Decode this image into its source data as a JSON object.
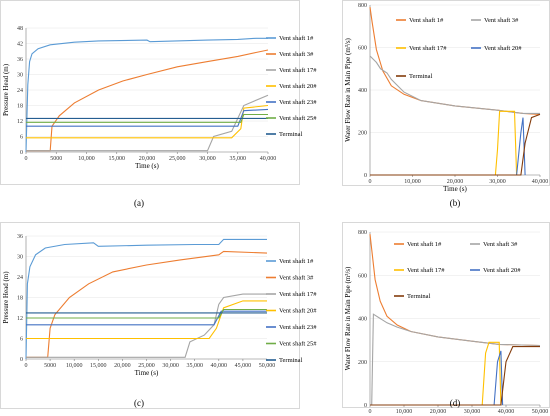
{
  "chart_data": [
    {
      "id": "a",
      "type": "line",
      "caption": "(a)",
      "xlabel": "Time (s)",
      "ylabel": "Pressure Head (m)",
      "xlim": [
        0,
        40000
      ],
      "ylim": [
        0,
        48
      ],
      "xticks": [
        0,
        5000,
        10000,
        15000,
        20000,
        25000,
        30000,
        35000,
        40000
      ],
      "xtick_labels": [
        "0",
        "5000",
        "10,000",
        "15,000",
        "20,000",
        "25,000",
        "30,000",
        "35,000",
        "40,000"
      ],
      "yticks": [
        0,
        6,
        12,
        18,
        24,
        30,
        36,
        42,
        48
      ],
      "grid": true,
      "legend_position": "right",
      "series": [
        {
          "name": "Vent shaft 1#",
          "color": "#5b9bd5",
          "points": [
            [
              0,
              0
            ],
            [
              300,
              26
            ],
            [
              600,
              35
            ],
            [
              1000,
              38
            ],
            [
              2000,
              40
            ],
            [
              4000,
              41.5
            ],
            [
              8000,
              42.5
            ],
            [
              12000,
              43
            ],
            [
              20000,
              43.3
            ],
            [
              20500,
              42.7
            ],
            [
              30000,
              43.3
            ],
            [
              35000,
              43.6
            ],
            [
              38000,
              44
            ],
            [
              40000,
              44
            ]
          ]
        },
        {
          "name": "Vent shaft 3#",
          "color": "#ed7d31",
          "points": [
            [
              0,
              0.5
            ],
            [
              4000,
              0.5
            ],
            [
              4300,
              10
            ],
            [
              5500,
              14
            ],
            [
              8000,
              19
            ],
            [
              12000,
              24
            ],
            [
              16000,
              27.5
            ],
            [
              20000,
              30
            ],
            [
              25000,
              33
            ],
            [
              30000,
              35
            ],
            [
              35000,
              37
            ],
            [
              38000,
              38.5
            ],
            [
              40000,
              39.5
            ]
          ]
        },
        {
          "name": "Vent shaft 17#",
          "color": "#a5a5a5",
          "points": [
            [
              0,
              0.5
            ],
            [
              30000,
              0.5
            ],
            [
              31000,
              6
            ],
            [
              34000,
              8
            ],
            [
              36000,
              18
            ],
            [
              40000,
              22
            ]
          ]
        },
        {
          "name": "Vent shaft 20#",
          "color": "#ffc000",
          "points": [
            [
              0,
              5.5
            ],
            [
              34000,
              5.5
            ],
            [
              35500,
              9
            ],
            [
              36000,
              17
            ],
            [
              40000,
              18
            ]
          ]
        },
        {
          "name": "Vent shaft 23#",
          "color": "#4472c4",
          "points": [
            [
              0,
              10
            ],
            [
              35000,
              10
            ],
            [
              36000,
              16
            ],
            [
              40000,
              16.5
            ]
          ]
        },
        {
          "name": "Vent shaft 25#",
          "color": "#70ad47",
          "points": [
            [
              0,
              11.5
            ],
            [
              35500,
              11.5
            ],
            [
              36000,
              14.5
            ],
            [
              40000,
              14.5
            ]
          ]
        },
        {
          "name": "Terminal",
          "color": "#255e91",
          "points": [
            [
              0,
              13
            ],
            [
              40000,
              13
            ]
          ]
        }
      ]
    },
    {
      "id": "b",
      "type": "line",
      "caption": "(b)",
      "xlabel": "Time (s)",
      "ylabel": "Water Flow Rate in Main Pipe (m³/s)",
      "xlim": [
        0,
        40000
      ],
      "ylim": [
        0,
        800
      ],
      "xticks": [
        0,
        10000,
        20000,
        30000,
        40000
      ],
      "xtick_labels": [
        "0",
        "10,000",
        "20,000",
        "30,000",
        "40,000"
      ],
      "yticks": [
        0,
        200,
        400,
        600,
        800
      ],
      "grid": true,
      "legend_position": "top",
      "series": [
        {
          "name": "Vent shaft 1#",
          "color": "#ed7d31",
          "points": [
            [
              0,
              790
            ],
            [
              500,
              720
            ],
            [
              1500,
              590
            ],
            [
              3000,
              490
            ],
            [
              5000,
              420
            ],
            [
              8000,
              380
            ],
            [
              12000,
              350
            ],
            [
              20000,
              325
            ],
            [
              30000,
              305
            ],
            [
              36000,
              290
            ],
            [
              40000,
              285
            ]
          ]
        },
        {
          "name": "Vent shaft 3#",
          "color": "#a5a5a5",
          "points": [
            [
              0,
              560
            ],
            [
              1500,
              530
            ],
            [
              2500,
              500
            ],
            [
              4000,
              480
            ],
            [
              5000,
              450
            ],
            [
              8000,
              390
            ],
            [
              12000,
              350
            ],
            [
              20000,
              325
            ],
            [
              30000,
              305
            ],
            [
              36000,
              290
            ],
            [
              40000,
              290
            ]
          ]
        },
        {
          "name": "Vent shaft 17#",
          "color": "#ffc000",
          "points": [
            [
              0,
              0
            ],
            [
              29500,
              0
            ],
            [
              30000,
              120
            ],
            [
              30500,
              300
            ],
            [
              34000,
              300
            ],
            [
              34500,
              0
            ]
          ]
        },
        {
          "name": "Vent shaft 20#",
          "color": "#4472c4",
          "points": [
            [
              0,
              0
            ],
            [
              34500,
              0
            ],
            [
              35500,
              200
            ],
            [
              36000,
              270
            ],
            [
              36500,
              0
            ]
          ]
        },
        {
          "name": "Terminal",
          "color": "#843c0c",
          "points": [
            [
              0,
              0
            ],
            [
              35500,
              0
            ],
            [
              36500,
              150
            ],
            [
              38000,
              270
            ],
            [
              40000,
              285
            ]
          ]
        }
      ]
    },
    {
      "id": "c",
      "type": "line",
      "caption": "(c)",
      "xlabel": "Time (s)",
      "ylabel": "Pressure Head (m)",
      "xlim": [
        0,
        50000
      ],
      "ylim": [
        0,
        36
      ],
      "xticks": [
        0,
        5000,
        10000,
        15000,
        20000,
        25000,
        30000,
        35000,
        40000,
        45000,
        50000
      ],
      "xtick_labels": [
        "0",
        "5000",
        "10,000",
        "15,000",
        "20,000",
        "25,000",
        "30,000",
        "35,000",
        "40,000",
        "45,000",
        "50,000"
      ],
      "yticks": [
        0,
        6,
        12,
        18,
        24,
        30,
        36
      ],
      "grid": true,
      "legend_position": "right",
      "series": [
        {
          "name": "Vent shaft 1#",
          "color": "#5b9bd5",
          "points": [
            [
              0,
              0
            ],
            [
              300,
              22
            ],
            [
              800,
              27
            ],
            [
              2000,
              30.5
            ],
            [
              4000,
              32.5
            ],
            [
              8000,
              33.5
            ],
            [
              14000,
              34
            ],
            [
              15000,
              33
            ],
            [
              25000,
              33.3
            ],
            [
              35000,
              33.5
            ],
            [
              40000,
              33.5
            ],
            [
              41000,
              35
            ],
            [
              50000,
              35
            ]
          ]
        },
        {
          "name": "Vent shaft 3#",
          "color": "#ed7d31",
          "points": [
            [
              0,
              0.5
            ],
            [
              4500,
              0.5
            ],
            [
              5000,
              9
            ],
            [
              6000,
              13
            ],
            [
              9000,
              18
            ],
            [
              13000,
              22
            ],
            [
              18000,
              25.5
            ],
            [
              25000,
              27.5
            ],
            [
              32000,
              29
            ],
            [
              40000,
              30.5
            ],
            [
              41000,
              31.5
            ],
            [
              50000,
              31
            ]
          ]
        },
        {
          "name": "Vent shaft 17#",
          "color": "#a5a5a5",
          "points": [
            [
              0,
              0.5
            ],
            [
              33000,
              0.5
            ],
            [
              34000,
              5
            ],
            [
              37000,
              7
            ],
            [
              39000,
              10
            ],
            [
              40000,
              16
            ],
            [
              41000,
              18
            ],
            [
              45000,
              19
            ],
            [
              50000,
              19
            ]
          ]
        },
        {
          "name": "Vent shaft 20#",
          "color": "#ffc000",
          "points": [
            [
              0,
              6
            ],
            [
              38000,
              6
            ],
            [
              39500,
              9
            ],
            [
              41000,
              15
            ],
            [
              45000,
              17
            ],
            [
              50000,
              17
            ]
          ]
        },
        {
          "name": "Vent shaft 23#",
          "color": "#4472c4",
          "points": [
            [
              0,
              10
            ],
            [
              39000,
              10
            ],
            [
              40500,
              14
            ],
            [
              50000,
              14
            ]
          ]
        },
        {
          "name": "Vent shaft 25#",
          "color": "#70ad47",
          "points": [
            [
              0,
              12
            ],
            [
              40000,
              12
            ],
            [
              41000,
              14.5
            ],
            [
              50000,
              14.5
            ]
          ]
        },
        {
          "name": "Terminal",
          "color": "#255e91",
          "points": [
            [
              0,
              13.5
            ],
            [
              50000,
              13.5
            ]
          ]
        }
      ]
    },
    {
      "id": "d",
      "type": "line",
      "caption": "(d)",
      "xlabel": "Time (s)",
      "ylabel": "Water Flow Rate in Main Pipe (m³/s)",
      "xlim": [
        0,
        50000
      ],
      "ylim": [
        0,
        800
      ],
      "xticks": [
        0,
        10000,
        20000,
        30000,
        40000,
        50000
      ],
      "xtick_labels": [
        "0",
        "10,000",
        "20,000",
        "30,000",
        "40,000",
        "50,000"
      ],
      "yticks": [
        0,
        200,
        400,
        600,
        800
      ],
      "grid": true,
      "legend_position": "top",
      "series": [
        {
          "name": "Vent shaft 1#",
          "color": "#ed7d31",
          "points": [
            [
              0,
              790
            ],
            [
              500,
              720
            ],
            [
              1500,
              580
            ],
            [
              3000,
              480
            ],
            [
              5000,
              410
            ],
            [
              8000,
              370
            ],
            [
              12000,
              340
            ],
            [
              20000,
              315
            ],
            [
              30000,
              295
            ],
            [
              38000,
              280
            ],
            [
              50000,
              275
            ]
          ]
        },
        {
          "name": "Vent shaft 3#",
          "color": "#a5a5a5",
          "points": [
            [
              0,
              0
            ],
            [
              500,
              0
            ],
            [
              1000,
              420
            ],
            [
              3000,
              400
            ],
            [
              5000,
              380
            ],
            [
              8000,
              360
            ],
            [
              12000,
              340
            ],
            [
              20000,
              315
            ],
            [
              30000,
              295
            ],
            [
              38000,
              280
            ],
            [
              50000,
              275
            ]
          ]
        },
        {
          "name": "Vent shaft 17#",
          "color": "#ffc000",
          "points": [
            [
              0,
              0
            ],
            [
              33000,
              0
            ],
            [
              34000,
              240
            ],
            [
              35000,
              290
            ],
            [
              38000,
              290
            ],
            [
              38500,
              0
            ]
          ]
        },
        {
          "name": "Vent shaft 20#",
          "color": "#4472c4",
          "points": [
            [
              0,
              0
            ],
            [
              36500,
              0
            ],
            [
              37500,
              200
            ],
            [
              38500,
              250
            ],
            [
              39000,
              0
            ]
          ]
        },
        {
          "name": "Terminal",
          "color": "#843c0c",
          "points": [
            [
              0,
              0
            ],
            [
              38500,
              0
            ],
            [
              40000,
              200
            ],
            [
              42000,
              270
            ],
            [
              50000,
              270
            ]
          ]
        }
      ]
    }
  ]
}
